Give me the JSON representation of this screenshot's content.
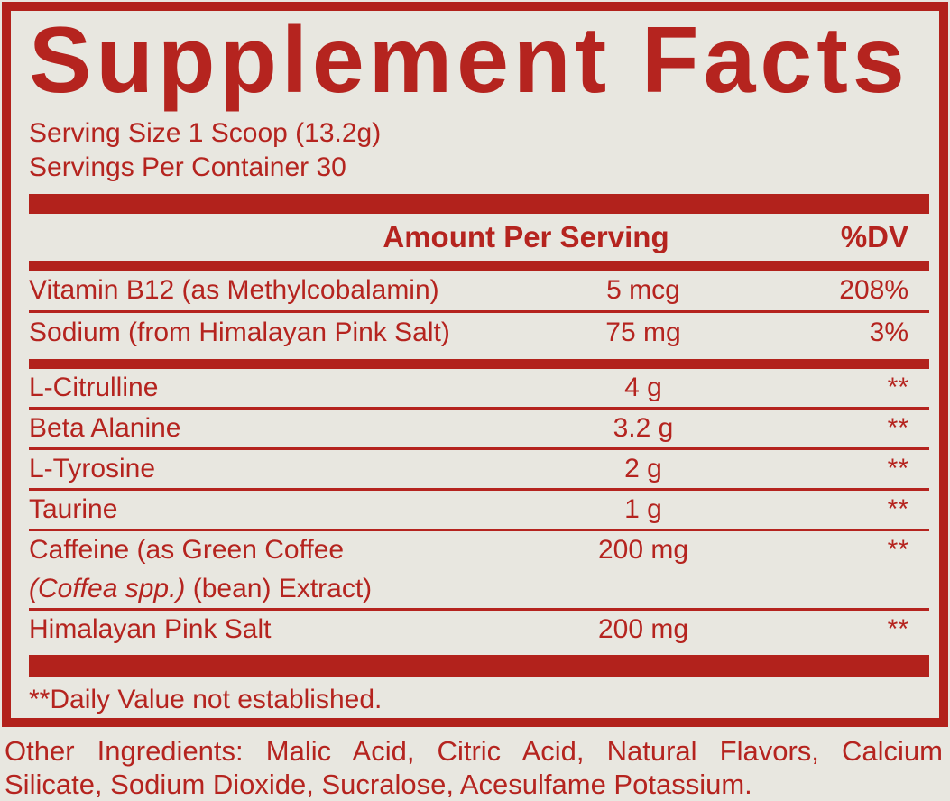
{
  "colors": {
    "red": "#b5241f",
    "bar_red": "#b2221c",
    "background": "#e8e7e0"
  },
  "panel": {
    "title": "Supplement Facts",
    "serving_size": "Serving Size 1 Scoop (13.2g)",
    "servings_per_container": "Servings Per Container 30",
    "column_headers": {
      "amount": "Amount Per Serving",
      "dv": "%DV"
    },
    "section1": [
      {
        "name": "Vitamin B12 (as Methylcobalamin)",
        "amount": "5 mcg",
        "dv": "208%"
      },
      {
        "name": "Sodium (from Himalayan Pink Salt)",
        "amount": "75 mg",
        "dv": "3%"
      }
    ],
    "section2": [
      {
        "name": "L-Citrulline",
        "amount": "4 g",
        "dv": "**"
      },
      {
        "name": "Beta Alanine",
        "amount": "3.2 g",
        "dv": "**"
      },
      {
        "name": "L-Tyrosine",
        "amount": "2 g",
        "dv": "**"
      },
      {
        "name": "Taurine",
        "amount": "1 g",
        "dv": "**"
      },
      {
        "name": "Caffeine (as Green Coffee",
        "name_line2_italic": "(Coffea spp.)",
        "name_line2_rest": " (bean) Extract)",
        "amount": "200 mg",
        "dv": "**"
      },
      {
        "name": "Himalayan Pink Salt",
        "amount": "200 mg",
        "dv": "**"
      }
    ],
    "footnote": "**Daily Value not established."
  },
  "other_ingredients": {
    "line1": "Other Ingredients: Malic Acid, Citric Acid, Natural Flavors, Calcium",
    "line2": "Silicate, Sodium Dioxide, Sucralose, Acesulfame Potassium."
  }
}
